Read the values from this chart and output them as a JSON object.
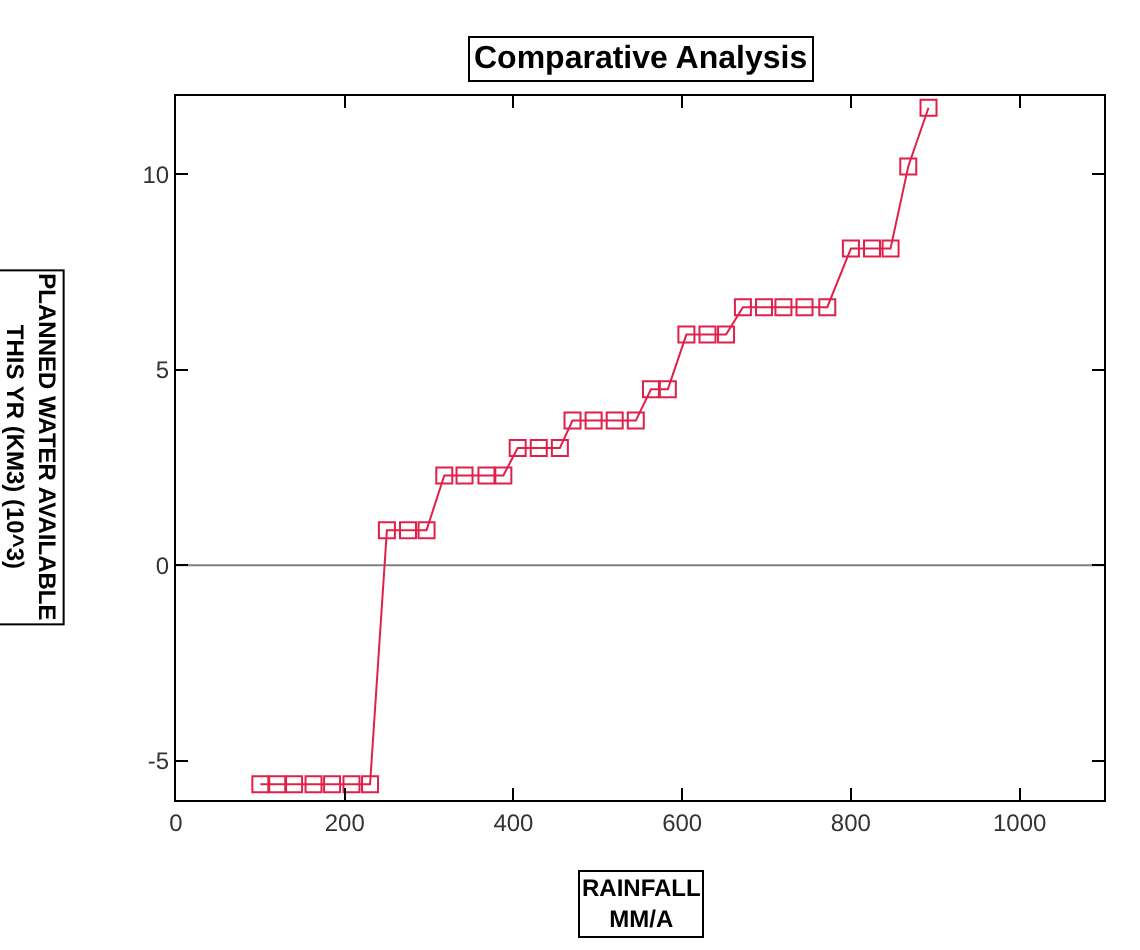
{
  "chart_data": {
    "type": "line",
    "title": "Comparative Analysis",
    "xlabel": "RAINFALL\nMM/A",
    "ylabel": "PLANNED WATER AVAILABLE\nTHIS YR (KM3) (10^3)",
    "x": [
      100,
      120,
      140,
      163,
      185,
      208,
      230,
      250,
      275,
      297,
      318,
      342,
      368,
      388,
      405,
      430,
      455,
      470,
      495,
      520,
      545,
      563,
      583,
      605,
      630,
      652,
      672,
      697,
      720,
      745,
      772,
      800,
      825,
      847,
      868,
      892
    ],
    "series": [
      {
        "color": "#e0204a",
        "values": [
          -5.6,
          -5.6,
          -5.6,
          -5.6,
          -5.6,
          -5.6,
          -5.6,
          0.9,
          0.9,
          0.9,
          2.3,
          2.3,
          2.3,
          2.3,
          3.0,
          3.0,
          3.0,
          3.7,
          3.7,
          3.7,
          3.7,
          4.5,
          4.5,
          5.9,
          5.9,
          5.9,
          6.6,
          6.6,
          6.6,
          6.6,
          6.6,
          8.1,
          8.1,
          8.1,
          10.2,
          11.7
        ]
      }
    ],
    "xlim": [
      0,
      1100
    ],
    "xticks": [
      0,
      200,
      400,
      600,
      800,
      1000
    ],
    "ylim": [
      -6,
      12
    ],
    "yticks": [
      -5,
      0,
      5,
      10
    ],
    "ref_lines": [
      {
        "axis": "y",
        "value": 0,
        "color": "#808080"
      }
    ],
    "grid": false,
    "legend": false,
    "marker": "square",
    "line_style": "solid"
  }
}
